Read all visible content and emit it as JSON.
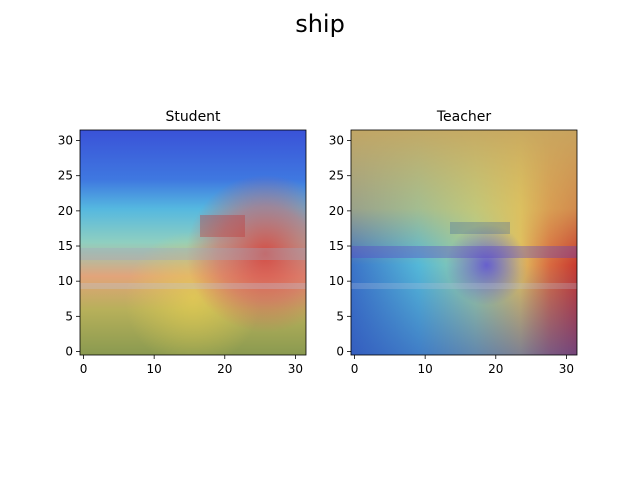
{
  "figure": {
    "suptitle": "ship"
  },
  "chart_data": [
    {
      "type": "heatmap",
      "title": "Student",
      "xticks": [
        0,
        10,
        20,
        30
      ],
      "yticks": [
        0,
        5,
        10,
        15,
        20,
        25,
        30
      ],
      "xlim": [
        -0.5,
        31.5
      ],
      "ylim": [
        31.5,
        -0.5
      ],
      "grid": false,
      "legend": "none",
      "overlay": "jet heatmap over 32x32 ship image"
    },
    {
      "type": "heatmap",
      "title": "Teacher",
      "xticks": [
        0,
        10,
        20,
        30
      ],
      "yticks": [
        0,
        5,
        10,
        15,
        20,
        25,
        30
      ],
      "xlim": [
        -0.5,
        31.5
      ],
      "ylim": [
        31.5,
        -0.5
      ],
      "grid": false,
      "legend": "none",
      "overlay": "jet heatmap over 32x32 ship image"
    }
  ]
}
